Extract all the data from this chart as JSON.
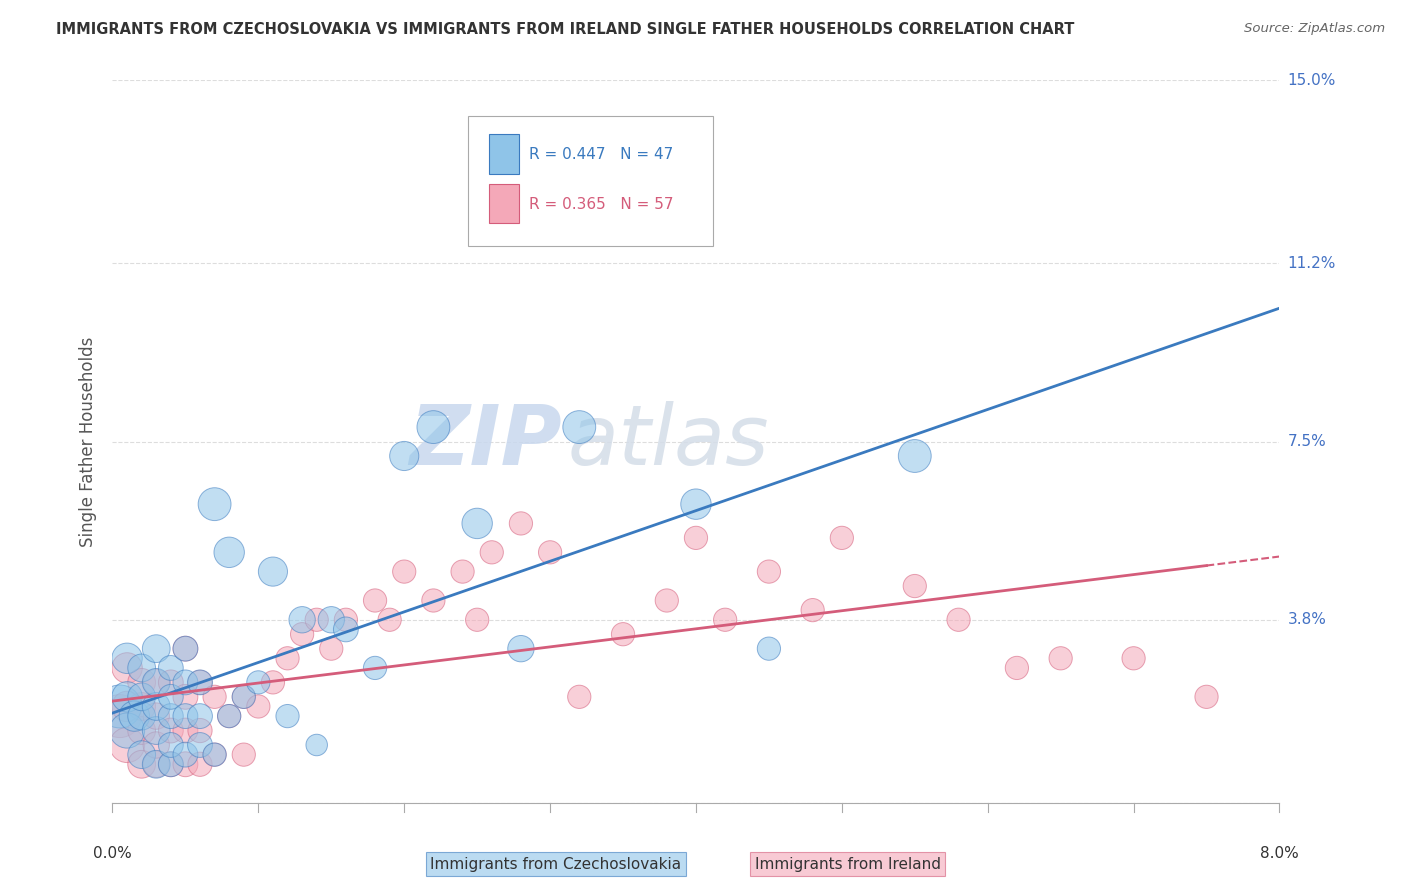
{
  "title": "IMMIGRANTS FROM CZECHOSLOVAKIA VS IMMIGRANTS FROM IRELAND SINGLE FATHER HOUSEHOLDS CORRELATION CHART",
  "source": "Source: ZipAtlas.com",
  "xlabel_czech": "Immigrants from Czechoslovakia",
  "xlabel_ireland": "Immigrants from Ireland",
  "ylabel": "Single Father Households",
  "watermark": "ZIPatlas",
  "xlim": [
    0.0,
    0.08
  ],
  "ylim": [
    0.0,
    0.15
  ],
  "yticks": [
    0.0,
    0.038,
    0.075,
    0.112,
    0.15
  ],
  "ytick_labels": [
    "",
    "3.8%",
    "7.5%",
    "11.2%",
    "15.0%"
  ],
  "czech_R": 0.447,
  "czech_N": 47,
  "ireland_R": 0.365,
  "ireland_N": 57,
  "czech_color": "#8fc4e8",
  "ireland_color": "#f4a8b8",
  "czech_line_color": "#3a7abf",
  "ireland_line_color": "#d45c7a",
  "background_color": "#ffffff",
  "grid_color": "#dddddd",
  "title_color": "#333333",
  "axis_label_color": "#555555",
  "legend_R_color_czech": "#3a7abf",
  "legend_R_color_ireland": "#d45c7a",
  "czech_scatter_x": [
    0.0005,
    0.001,
    0.001,
    0.001,
    0.0015,
    0.002,
    0.002,
    0.002,
    0.002,
    0.003,
    0.003,
    0.003,
    0.003,
    0.003,
    0.004,
    0.004,
    0.004,
    0.004,
    0.004,
    0.005,
    0.005,
    0.005,
    0.005,
    0.006,
    0.006,
    0.006,
    0.007,
    0.007,
    0.008,
    0.008,
    0.009,
    0.01,
    0.011,
    0.012,
    0.013,
    0.014,
    0.015,
    0.016,
    0.018,
    0.02,
    0.022,
    0.025,
    0.028,
    0.032,
    0.04,
    0.045,
    0.055
  ],
  "czech_scatter_y": [
    0.02,
    0.015,
    0.022,
    0.03,
    0.018,
    0.01,
    0.018,
    0.022,
    0.028,
    0.008,
    0.015,
    0.02,
    0.025,
    0.032,
    0.008,
    0.012,
    0.018,
    0.022,
    0.028,
    0.01,
    0.018,
    0.025,
    0.032,
    0.012,
    0.018,
    0.025,
    0.01,
    0.062,
    0.018,
    0.052,
    0.022,
    0.025,
    0.048,
    0.018,
    0.038,
    0.012,
    0.038,
    0.036,
    0.028,
    0.072,
    0.078,
    0.058,
    0.032,
    0.078,
    0.062,
    0.032,
    0.072
  ],
  "czech_scatter_size": [
    120,
    80,
    60,
    60,
    60,
    50,
    50,
    50,
    50,
    50,
    50,
    50,
    50,
    50,
    40,
    40,
    40,
    40,
    40,
    40,
    40,
    40,
    40,
    40,
    40,
    40,
    35,
    70,
    35,
    60,
    35,
    35,
    55,
    35,
    45,
    30,
    45,
    40,
    35,
    55,
    70,
    60,
    45,
    70,
    60,
    35,
    70
  ],
  "ireland_scatter_x": [
    0.0005,
    0.001,
    0.001,
    0.001,
    0.002,
    0.002,
    0.002,
    0.002,
    0.003,
    0.003,
    0.003,
    0.003,
    0.004,
    0.004,
    0.004,
    0.005,
    0.005,
    0.005,
    0.005,
    0.006,
    0.006,
    0.006,
    0.007,
    0.007,
    0.008,
    0.009,
    0.009,
    0.01,
    0.011,
    0.012,
    0.013,
    0.014,
    0.015,
    0.016,
    0.018,
    0.019,
    0.02,
    0.022,
    0.024,
    0.025,
    0.026,
    0.028,
    0.03,
    0.032,
    0.035,
    0.038,
    0.04,
    0.042,
    0.045,
    0.048,
    0.05,
    0.055,
    0.058,
    0.062,
    0.065,
    0.07,
    0.075
  ],
  "ireland_scatter_y": [
    0.018,
    0.012,
    0.02,
    0.028,
    0.008,
    0.015,
    0.02,
    0.025,
    0.008,
    0.012,
    0.018,
    0.025,
    0.008,
    0.015,
    0.025,
    0.008,
    0.015,
    0.022,
    0.032,
    0.008,
    0.015,
    0.025,
    0.01,
    0.022,
    0.018,
    0.01,
    0.022,
    0.02,
    0.025,
    0.03,
    0.035,
    0.038,
    0.032,
    0.038,
    0.042,
    0.038,
    0.048,
    0.042,
    0.048,
    0.038,
    0.052,
    0.058,
    0.052,
    0.022,
    0.035,
    0.042,
    0.055,
    0.038,
    0.048,
    0.04,
    0.055,
    0.045,
    0.038,
    0.028,
    0.03,
    0.03,
    0.022
  ],
  "ireland_scatter_size": [
    120,
    80,
    60,
    60,
    50,
    50,
    50,
    50,
    45,
    45,
    45,
    45,
    40,
    40,
    40,
    40,
    40,
    40,
    40,
    38,
    38,
    38,
    35,
    35,
    35,
    35,
    35,
    35,
    35,
    35,
    35,
    35,
    35,
    35,
    35,
    35,
    35,
    35,
    35,
    35,
    35,
    35,
    35,
    35,
    35,
    35,
    35,
    35,
    35,
    35,
    35,
    35,
    35,
    35,
    35,
    35,
    35
  ]
}
